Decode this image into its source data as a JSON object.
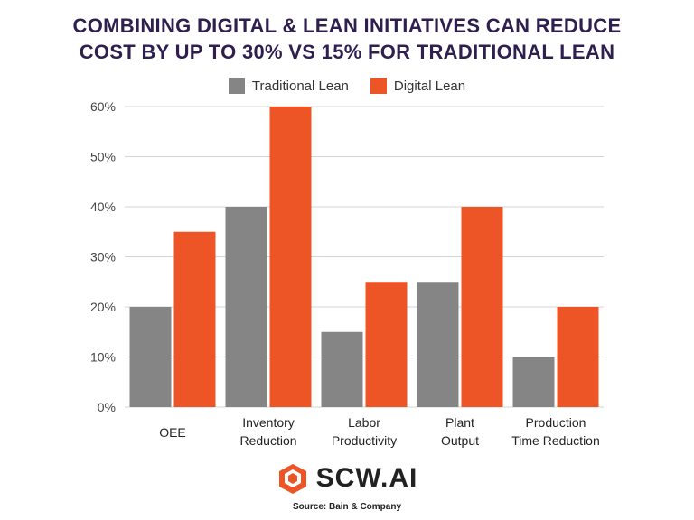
{
  "title_line1": "COMBINING DIGITAL & LEAN INITIATIVES CAN REDUCE",
  "title_line2": "COST BY UP TO 30% VS 15% FOR TRADITIONAL LEAN",
  "brand": "SCW.AI",
  "source": "Source: Bain & Company",
  "colors": {
    "traditional": "#858585",
    "digital": "#ee5526",
    "title": "#2f1f4f",
    "grid": "#d4d4d4"
  },
  "chart_data": {
    "type": "bar",
    "categories": [
      [
        "OEE"
      ],
      [
        "Inventory",
        "Reduction"
      ],
      [
        "Labor",
        "Productivity"
      ],
      [
        "Plant",
        "Output"
      ],
      [
        "Production",
        "Time Reduction"
      ]
    ],
    "series": [
      {
        "name": "Traditional Lean",
        "values": [
          20,
          40,
          15,
          25,
          10
        ]
      },
      {
        "name": "Digital Lean",
        "values": [
          35,
          60,
          25,
          40,
          20
        ]
      }
    ],
    "yticks": [
      "0%",
      "10%",
      "20%",
      "30%",
      "40%",
      "50%",
      "60%"
    ],
    "ylim": [
      0,
      60
    ],
    "grid": true,
    "legend": "top-center"
  }
}
